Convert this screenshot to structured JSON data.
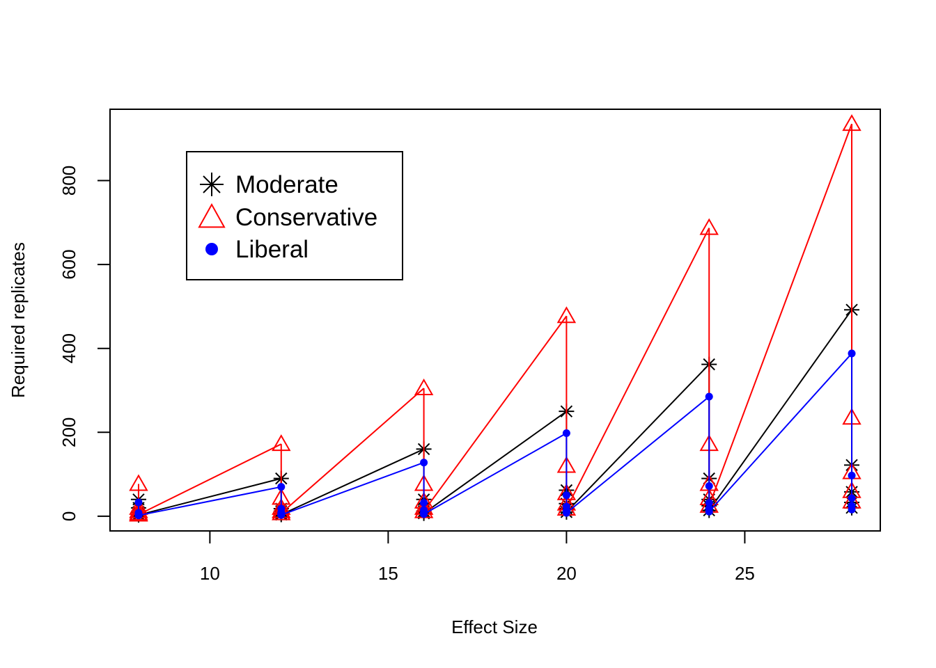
{
  "chart_data": {
    "type": "scatter",
    "xlabel": "Effect Size",
    "ylabel": "Required replicates",
    "xlim": [
      7.2,
      28.8
    ],
    "ylim": [
      -35,
      970
    ],
    "xticks": [
      10,
      15,
      20,
      25
    ],
    "yticks": [
      0,
      200,
      400,
      600,
      800
    ],
    "legend": {
      "position": "top-left",
      "boxed": true
    },
    "x": [
      8,
      12,
      16,
      20,
      24,
      28
    ],
    "series": [
      {
        "name": "Moderate",
        "color": "#000000",
        "marker": "asterisk",
        "groups": [
          [
            40,
            20,
            10,
            5,
            3
          ],
          [
            90,
            18,
            12,
            7,
            4
          ],
          [
            160,
            40,
            20,
            12,
            7
          ],
          [
            250,
            62,
            30,
            18,
            10
          ],
          [
            362,
            90,
            40,
            25,
            14
          ],
          [
            492,
            122,
            58,
            33,
            20
          ]
        ]
      },
      {
        "name": "Conservative",
        "color": "#ff0000",
        "marker": "triangle",
        "groups": [
          [
            77,
            20,
            12,
            7,
            4
          ],
          [
            172,
            44,
            20,
            12,
            7
          ],
          [
            305,
            77,
            35,
            20,
            12
          ],
          [
            477,
            120,
            55,
            30,
            18
          ],
          [
            687,
            172,
            77,
            43,
            25
          ],
          [
            935,
            235,
            105,
            60,
            35
          ]
        ]
      },
      {
        "name": "Liberal",
        "color": "#0000ff",
        "marker": "dot",
        "groups": [
          [
            33,
            8,
            5,
            3,
            2
          ],
          [
            70,
            18,
            9,
            5,
            3
          ],
          [
            128,
            32,
            15,
            9,
            5
          ],
          [
            198,
            50,
            23,
            13,
            8
          ],
          [
            285,
            72,
            32,
            18,
            11
          ],
          [
            388,
            97,
            43,
            25,
            16
          ]
        ]
      }
    ]
  }
}
